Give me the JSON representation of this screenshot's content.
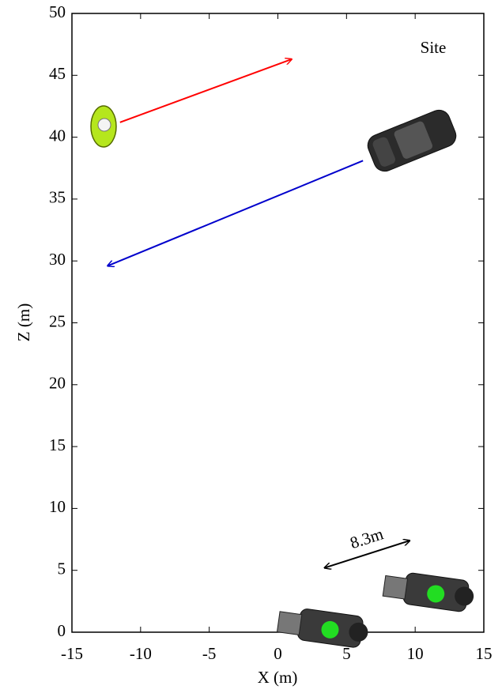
{
  "chart_data": {
    "type": "scatter",
    "xlabel": "X (m)",
    "ylabel": "Z (m)",
    "xlim": [
      -15,
      15
    ],
    "ylim": [
      0,
      50
    ],
    "xticks": [
      -15,
      -10,
      -5,
      0,
      5,
      10,
      15
    ],
    "yticks": [
      0,
      5,
      10,
      15,
      20,
      25,
      30,
      35,
      40,
      45,
      50
    ],
    "series": [
      {
        "color": "#22dd22",
        "x": [
          3.8,
          11.5
        ],
        "values": [
          0.2,
          3.1
        ]
      }
    ],
    "arrows": [
      {
        "color": "#ff0000",
        "x": [
          -11.5,
          1.0
        ],
        "y": [
          41.2,
          46.3
        ]
      },
      {
        "color": "#0000cc",
        "x": [
          6.2,
          -12.4
        ],
        "y": [
          38.1,
          29.6
        ]
      }
    ],
    "measure": {
      "label": "8.3m",
      "color": "#000000",
      "x": [
        3.4,
        9.6
      ],
      "y": [
        5.2,
        7.4
      ]
    },
    "annotation": "Site"
  }
}
